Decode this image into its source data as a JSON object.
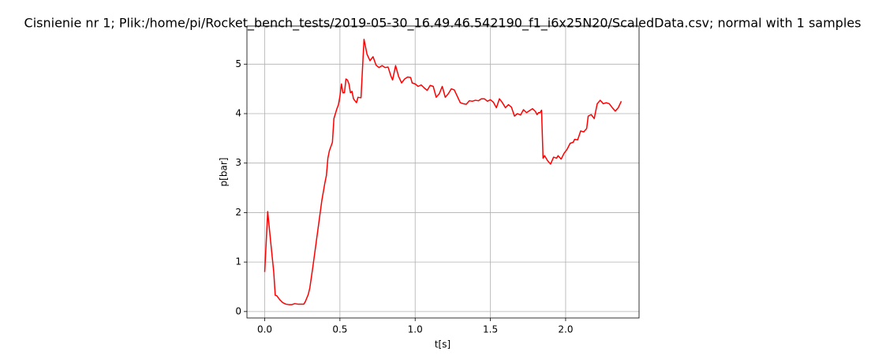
{
  "chart_data": {
    "type": "line",
    "title": "Cisnienie nr 1; Plik:/home/pi/Rocket_bench_tests/2019-05-30_16.49.46.542190_f1_i6x25N20/ScaledData.csv; normal with 1 samples",
    "x_label": "t[s]",
    "y_label": "p[bar]",
    "x": [
      0.0,
      0.02,
      0.04,
      0.06,
      0.07,
      0.08,
      0.1,
      0.12,
      0.14,
      0.16,
      0.18,
      0.2,
      0.22,
      0.24,
      0.26,
      0.27,
      0.29,
      0.3,
      0.32,
      0.34,
      0.36,
      0.38,
      0.4,
      0.41,
      0.42,
      0.43,
      0.45,
      0.46,
      0.48,
      0.49,
      0.5,
      0.51,
      0.52,
      0.53,
      0.54,
      0.55,
      0.56,
      0.57,
      0.58,
      0.59,
      0.61,
      0.62,
      0.64,
      0.66,
      0.68,
      0.7,
      0.72,
      0.74,
      0.76,
      0.78,
      0.8,
      0.82,
      0.84,
      0.85,
      0.87,
      0.89,
      0.91,
      0.93,
      0.95,
      0.97,
      0.98,
      1.0,
      1.02,
      1.04,
      1.06,
      1.08,
      1.1,
      1.12,
      1.14,
      1.16,
      1.18,
      1.2,
      1.22,
      1.24,
      1.26,
      1.28,
      1.3,
      1.32,
      1.34,
      1.36,
      1.38,
      1.4,
      1.42,
      1.44,
      1.46,
      1.48,
      1.5,
      1.52,
      1.54,
      1.56,
      1.58,
      1.6,
      1.62,
      1.64,
      1.66,
      1.68,
      1.7,
      1.72,
      1.74,
      1.76,
      1.78,
      1.8,
      1.81,
      1.82,
      1.83,
      1.84,
      1.85,
      1.86,
      1.88,
      1.9,
      1.92,
      1.94,
      1.95,
      1.97,
      1.99,
      2.01,
      2.03,
      2.05,
      2.06,
      2.08,
      2.1,
      2.12,
      2.14,
      2.15,
      2.17,
      2.19,
      2.21,
      2.23,
      2.25,
      2.27,
      2.29,
      2.31,
      2.33,
      2.35,
      2.37
    ],
    "series": [
      {
        "color": "#ff0000",
        "values": [
          0.8,
          2.02,
          1.4,
          0.8,
          0.33,
          0.32,
          0.24,
          0.18,
          0.15,
          0.14,
          0.14,
          0.16,
          0.15,
          0.15,
          0.15,
          0.2,
          0.35,
          0.48,
          0.9,
          1.35,
          1.8,
          2.25,
          2.6,
          2.75,
          3.1,
          3.25,
          3.42,
          3.9,
          4.1,
          4.18,
          4.35,
          4.6,
          4.42,
          4.42,
          4.7,
          4.68,
          4.6,
          4.42,
          4.45,
          4.3,
          4.22,
          4.33,
          4.32,
          5.5,
          5.2,
          5.07,
          5.15,
          4.98,
          4.93,
          4.97,
          4.93,
          4.94,
          4.75,
          4.68,
          4.97,
          4.75,
          4.62,
          4.7,
          4.74,
          4.73,
          4.62,
          4.6,
          4.55,
          4.58,
          4.52,
          4.47,
          4.57,
          4.55,
          4.33,
          4.4,
          4.55,
          4.33,
          4.4,
          4.5,
          4.48,
          4.35,
          4.22,
          4.2,
          4.19,
          4.26,
          4.25,
          4.27,
          4.26,
          4.3,
          4.3,
          4.25,
          4.28,
          4.23,
          4.12,
          4.3,
          4.22,
          4.12,
          4.18,
          4.13,
          3.95,
          4.0,
          3.97,
          4.08,
          4.02,
          4.06,
          4.1,
          4.04,
          3.98,
          4.02,
          4.02,
          4.07,
          3.1,
          3.15,
          3.05,
          2.98,
          3.12,
          3.1,
          3.15,
          3.08,
          3.2,
          3.28,
          3.4,
          3.42,
          3.48,
          3.47,
          3.65,
          3.63,
          3.7,
          3.95,
          3.98,
          3.9,
          4.2,
          4.27,
          4.2,
          4.22,
          4.2,
          4.12,
          4.05,
          4.12,
          4.25
        ]
      }
    ],
    "xlim": [
      -0.118,
      2.488
    ],
    "ylim": [
      -0.13,
      5.77
    ],
    "xticks": [
      {
        "value": 0,
        "label": "0.0"
      },
      {
        "value": 0.5,
        "label": "0.5"
      },
      {
        "value": 1,
        "label": "1.0"
      },
      {
        "value": 1.5,
        "label": "1.5"
      },
      {
        "value": 2,
        "label": "2.0"
      }
    ],
    "yticks": [
      0,
      1,
      2,
      3,
      4,
      5
    ],
    "grid": true
  }
}
